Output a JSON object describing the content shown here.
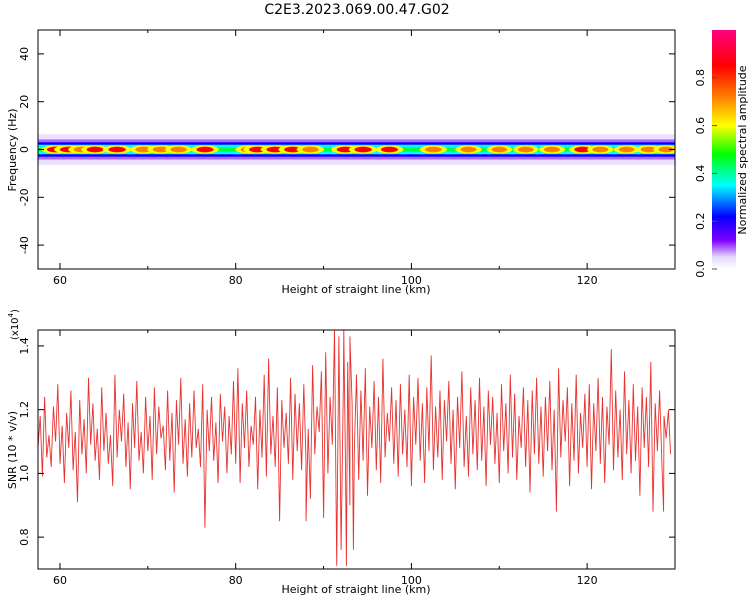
{
  "title": "C2E3.2023.069.00.47.G02",
  "chart_data": [
    {
      "type": "heatmap",
      "xlabel": "Height of straight line (km)",
      "ylabel": "Frequency (Hz)",
      "xlim": [
        57.5,
        130
      ],
      "ylim": [
        -50,
        50
      ],
      "x_ticks": [
        60,
        80,
        100,
        120
      ],
      "x_tick_labels": [
        "60",
        "80",
        "100",
        "120"
      ],
      "y_ticks": [
        -40,
        -20,
        0,
        20,
        40
      ],
      "y_tick_labels": [
        "-40",
        "-20",
        "0",
        "20",
        "40"
      ],
      "band_center_hz": 0,
      "band_halfwidth_hz": 4,
      "colorbar": {
        "label": "Normalized spectral amplitude",
        "range": [
          0,
          1
        ],
        "ticks": [
          0.0,
          0.2,
          0.4,
          0.6,
          0.8
        ],
        "tick_labels": [
          "0.0",
          "0.2",
          "0.4",
          "0.6",
          "0.8"
        ],
        "colormap": [
          "#ffffff",
          "#7f00ff",
          "#0000ff",
          "#00ffff",
          "#00ff00",
          "#ffff00",
          "#ff7f00",
          "#ff0000",
          "#ff0080"
        ]
      },
      "peaks": [
        {
          "x": 59.5,
          "a": 0.9
        },
        {
          "x": 61.0,
          "a": 0.95
        },
        {
          "x": 62.5,
          "a": 0.8
        },
        {
          "x": 64.0,
          "a": 0.85
        },
        {
          "x": 66.5,
          "a": 0.9
        },
        {
          "x": 69.5,
          "a": 0.75
        },
        {
          "x": 71.5,
          "a": 0.8
        },
        {
          "x": 73.5,
          "a": 0.75
        },
        {
          "x": 76.5,
          "a": 0.85
        },
        {
          "x": 81.5,
          "a": 0.75
        },
        {
          "x": 82.5,
          "a": 0.9
        },
        {
          "x": 84.5,
          "a": 0.95
        },
        {
          "x": 86.5,
          "a": 0.9
        },
        {
          "x": 88.5,
          "a": 0.8
        },
        {
          "x": 92.5,
          "a": 0.95
        },
        {
          "x": 94.5,
          "a": 0.9
        },
        {
          "x": 97.5,
          "a": 0.85
        },
        {
          "x": 102.5,
          "a": 0.8
        },
        {
          "x": 106.5,
          "a": 0.7
        },
        {
          "x": 110.0,
          "a": 0.65
        },
        {
          "x": 113.0,
          "a": 0.65
        },
        {
          "x": 116.0,
          "a": 0.7
        },
        {
          "x": 119.5,
          "a": 0.85
        },
        {
          "x": 121.5,
          "a": 0.7
        },
        {
          "x": 124.5,
          "a": 0.65
        },
        {
          "x": 127.0,
          "a": 0.7
        },
        {
          "x": 129.0,
          "a": 0.65
        }
      ]
    },
    {
      "type": "line",
      "xlabel": "Height of straight line (km)",
      "ylabel": "SNR (10 * v/v)",
      "y_multiplier_label": "(x10",
      "y_multiplier_exp": "4",
      "y_multiplier_close": ")",
      "xlim": [
        57.5,
        130
      ],
      "ylim": [
        0.7,
        1.45
      ],
      "x_ticks": [
        60,
        80,
        100,
        120
      ],
      "x_tick_labels": [
        "60",
        "80",
        "100",
        "120"
      ],
      "y_ticks": [
        0.8,
        1.0,
        1.2,
        1.4
      ],
      "y_tick_labels": [
        "0.8",
        "1.0",
        "1.2",
        "1.4"
      ],
      "series": [
        {
          "color": "#e8322f",
          "x_start": 57.5,
          "x_step": 0.25,
          "values": [
            1.08,
            1.18,
            0.99,
            1.24,
            1.05,
            1.12,
            1.02,
            1.21,
            1.1,
            1.28,
            1.03,
            1.15,
            0.97,
            1.19,
            1.08,
            1.26,
            1.01,
            1.13,
            0.91,
            1.23,
            1.06,
            1.17,
            1.0,
            1.3,
            1.09,
            1.22,
            1.04,
            1.14,
            0.98,
            1.27,
            1.07,
            1.19,
            1.03,
            1.12,
            0.96,
            1.31,
            1.05,
            1.2,
            1.1,
            1.25,
            1.02,
            1.16,
            0.95,
            1.22,
            1.08,
            1.29,
            1.04,
            1.13,
            1.0,
            1.24,
            1.07,
            1.18,
            0.98,
            1.27,
            1.06,
            1.21,
            1.11,
            1.15,
            1.01,
            1.26,
            1.04,
            1.19,
            0.94,
            1.23,
            1.09,
            1.3,
            1.03,
            1.17,
            0.99,
            1.22,
            1.05,
            1.26,
            1.08,
            1.14,
            1.02,
            1.28,
            0.83,
            1.2,
            1.07,
            1.24,
            1.04,
            1.16,
            0.97,
            1.25,
            1.1,
            1.21,
            1.0,
            1.18,
            1.06,
            1.29,
            1.03,
            1.33,
            0.97,
            1.22,
            1.08,
            1.26,
            1.02,
            1.15,
            1.09,
            1.24,
            0.95,
            1.2,
            1.05,
            1.31,
            0.99,
            1.36,
            1.06,
            1.18,
            1.02,
            1.27,
            0.85,
            1.23,
            1.08,
            1.19,
            1.03,
            1.3,
            0.98,
            1.25,
            1.07,
            1.22,
            1.01,
            1.28,
            1.04,
            1.14,
            0.92,
            1.34,
            1.06,
            1.21,
            1.13,
            1.32,
            0.86,
            1.38,
            1.0,
            1.24,
            1.09,
            1.45,
            0.71,
            1.43,
            0.76,
            1.26,
            1.02,
            1.35,
            0.9,
            1.22,
            1.07,
            1.31,
            0.98,
            1.26,
            1.04,
            1.33,
            0.93,
            1.21,
            1.08,
            1.29,
            1.01,
            1.24,
            0.97,
            1.36,
            1.05,
            1.19,
            1.1,
            1.27,
            1.03,
            1.23,
            0.99,
            1.28,
            1.06,
            1.2,
            1.02,
            1.31,
            0.96,
            1.24,
            1.09,
            1.3,
            1.04,
            1.22,
            0.97,
            1.27,
            1.07,
            1.37,
            1.01,
            1.21,
            1.05,
            1.26,
            0.98,
            1.23,
            1.1,
            1.29,
            1.03,
            1.2,
            0.95,
            1.24,
            1.08,
            1.32,
            1.02,
            1.18,
            0.99,
            1.27,
            1.06,
            1.23,
            1.01,
            1.3,
            1.04,
            1.21,
            0.96,
            1.26,
            1.09,
            1.24,
            1.03,
            1.19,
            0.97,
            1.28,
            1.07,
            1.22,
            1.0,
            1.31,
            1.05,
            1.25,
            0.98,
            1.18,
            1.08,
            1.27,
            1.02,
            1.23,
            0.94,
            1.26,
            1.06,
            1.3,
            1.03,
            1.21,
            0.99,
            1.24,
            1.07,
            1.29,
            1.01,
            1.2,
            0.88,
            1.33,
            1.05,
            1.23,
            1.1,
            1.27,
            0.96,
            1.22,
            1.04,
            1.31,
            1.0,
            1.19,
            1.08,
            1.25,
            1.02,
            1.28,
            0.95,
            1.22,
            1.07,
            1.3,
            1.03,
            1.24,
            0.97,
            1.21,
            1.09,
            1.39,
            1.01,
            1.26,
            1.05,
            1.2,
            0.98,
            1.32,
            1.06,
            1.23,
            1.0,
            1.28,
            1.04,
            1.21,
            0.93,
            1.27,
            1.08,
            1.24,
            1.02,
            1.35,
            0.88,
            1.22,
            1.07,
            1.26,
            1.04,
            1.18,
            1.11,
            1.2,
            1.06
          ],
          "spikes": [
            {
              "x": 76.5,
              "y": 0.83
            },
            {
              "x": 88.0,
              "y": 0.85
            },
            {
              "x": 92.3,
              "y": 1.45
            },
            {
              "x": 92.6,
              "y": 0.71
            },
            {
              "x": 93.0,
              "y": 1.43
            },
            {
              "x": 93.4,
              "y": 0.76
            },
            {
              "x": 128.7,
              "y": 0.88
            }
          ]
        }
      ]
    }
  ]
}
